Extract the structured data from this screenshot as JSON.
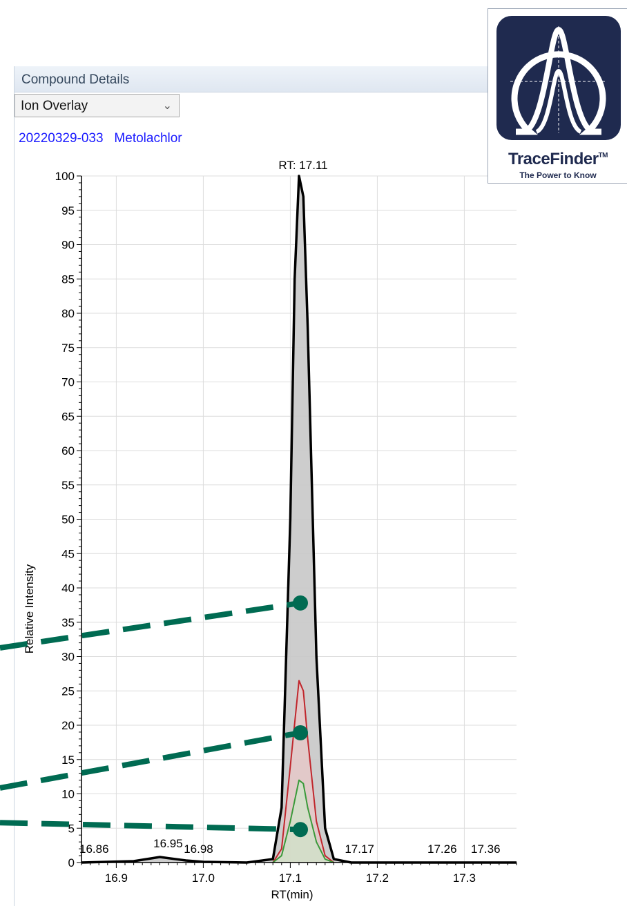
{
  "window": {
    "panel_title": "Compound Details",
    "view_select": {
      "value": "Ion Overlay",
      "chevron_icon": "chevron-down-icon"
    },
    "sample_id": "20220329-033",
    "compound": "Metolachlor"
  },
  "logo": {
    "name": "TraceFinder",
    "trademark": "TM",
    "tagline": "The Power to Know",
    "icon": "tracefinder-peak-logo",
    "box_color": "#1f2a4f"
  },
  "chart_data": {
    "type": "line",
    "title": "RT: 17.11",
    "xlabel": "RT(min)",
    "ylabel": "Relative Intensity",
    "xlim": [
      16.86,
      17.36
    ],
    "ylim": [
      0,
      100
    ],
    "x_ticks": [
      "16.9",
      "17.0",
      "17.1",
      "17.2",
      "17.3"
    ],
    "y_ticks": [
      "0",
      "5",
      "10",
      "15",
      "20",
      "25",
      "30",
      "35",
      "40",
      "45",
      "50",
      "55",
      "60",
      "65",
      "70",
      "75",
      "80",
      "85",
      "90",
      "95",
      "100"
    ],
    "grid": true,
    "series": [
      {
        "color": "#000000",
        "fill": "#c8c8c8",
        "x": [
          16.86,
          16.92,
          16.95,
          16.98,
          17.0,
          17.05,
          17.08,
          17.09,
          17.1,
          17.105,
          17.11,
          17.115,
          17.12,
          17.13,
          17.14,
          17.15,
          17.17,
          17.2,
          17.36
        ],
        "y": [
          0,
          0.2,
          0.8,
          0.3,
          0.1,
          0,
          0.5,
          8,
          50,
          85,
          100,
          97,
          78,
          30,
          5,
          0.5,
          0,
          0,
          0
        ]
      },
      {
        "color": "#c0262c",
        "fill": "#e8c7c7",
        "x": [
          17.08,
          17.09,
          17.1,
          17.11,
          17.115,
          17.12,
          17.13,
          17.14,
          17.15
        ],
        "y": [
          0,
          2,
          14,
          26.5,
          25,
          18,
          6,
          1,
          0
        ]
      },
      {
        "color": "#3a9a3a",
        "fill": "#cfe3c8",
        "x": [
          17.08,
          17.09,
          17.1,
          17.11,
          17.115,
          17.12,
          17.13,
          17.14,
          17.15
        ],
        "y": [
          0,
          1,
          6,
          12,
          11.5,
          8,
          3,
          0.5,
          0
        ]
      }
    ],
    "peak_labels": [
      {
        "text": "16.86",
        "x": 16.865,
        "y": 0.8
      },
      {
        "text": "16.95",
        "x": 16.95,
        "y": 1.6
      },
      {
        "text": "16.98",
        "x": 16.985,
        "y": 0.8
      },
      {
        "text": "17.17",
        "x": 17.17,
        "y": 0.8
      },
      {
        "text": "17.26",
        "x": 17.265,
        "y": 0.8
      },
      {
        "text": "17.36",
        "x": 17.315,
        "y": 0.8
      }
    ],
    "callout_color": "#006b52",
    "callouts": [
      {
        "x": 17.11,
        "y": 37.8
      },
      {
        "x": 17.11,
        "y": 18.9
      },
      {
        "x": 17.11,
        "y": 4.8
      }
    ]
  }
}
